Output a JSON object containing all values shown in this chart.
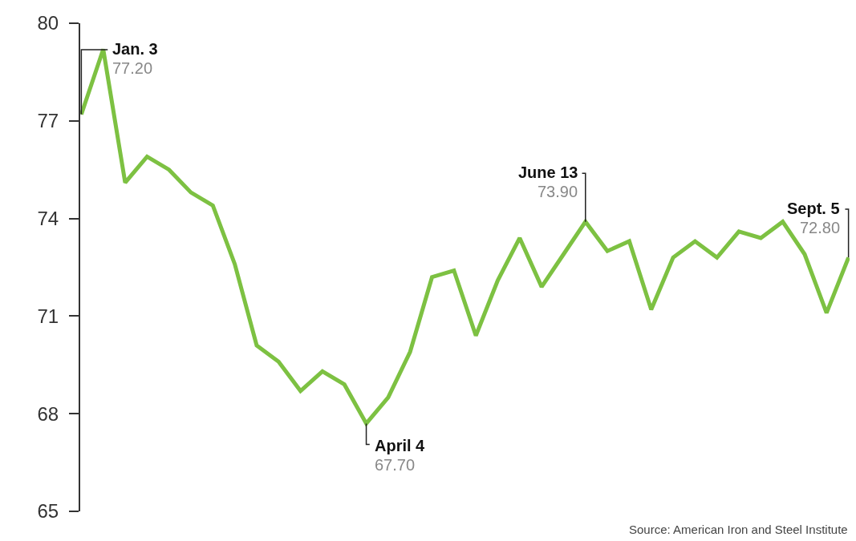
{
  "chart_data": {
    "type": "line",
    "color": "#7dc142",
    "categories": [
      null,
      null,
      null,
      null,
      null,
      null,
      null,
      null,
      null,
      null,
      null,
      null,
      null,
      null,
      null,
      null,
      null,
      null,
      null,
      null,
      null,
      null,
      null,
      null,
      null,
      null,
      null,
      null,
      null,
      null,
      null,
      null,
      null,
      null,
      null,
      null
    ],
    "values": [
      77.2,
      79.2,
      75.1,
      75.9,
      75.5,
      74.8,
      74.4,
      72.6,
      70.1,
      69.6,
      68.7,
      69.3,
      68.9,
      67.7,
      68.5,
      69.9,
      72.2,
      72.4,
      70.4,
      72.1,
      73.4,
      71.9,
      72.9,
      73.9,
      73.0,
      73.3,
      71.2,
      72.8,
      73.3,
      72.8,
      73.6,
      73.4,
      73.9,
      72.9,
      71.1,
      72.8
    ],
    "value_labels": [
      "77.20",
      null,
      null,
      null,
      null,
      null,
      null,
      null,
      null,
      null,
      null,
      null,
      null,
      "67.70",
      null,
      null,
      null,
      null,
      null,
      null,
      null,
      null,
      null,
      "73.90",
      null,
      null,
      null,
      null,
      null,
      null,
      null,
      null,
      null,
      null,
      null,
      "72.80"
    ],
    "annotations": [
      "Jan. 3",
      "April 4",
      "June 13",
      "Sept. 5",
      "Source: American Iron and Steel Institute"
    ],
    "ylim": [
      65,
      80
    ],
    "yticks": [
      65,
      68,
      71,
      74,
      77,
      80
    ],
    "grid": false,
    "marker": "none",
    "line_style": "solid"
  }
}
